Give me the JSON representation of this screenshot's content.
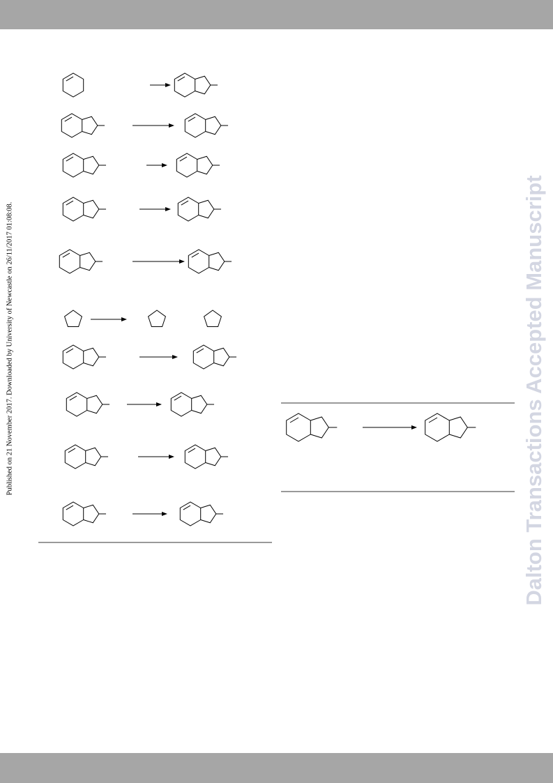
{
  "side_note": "Published on 21 November 2017. Downloaded by University of Newcastle on 26/11/2017 01:08:08.",
  "watermark": "Dalton Transactions Accepted Manuscript"
}
